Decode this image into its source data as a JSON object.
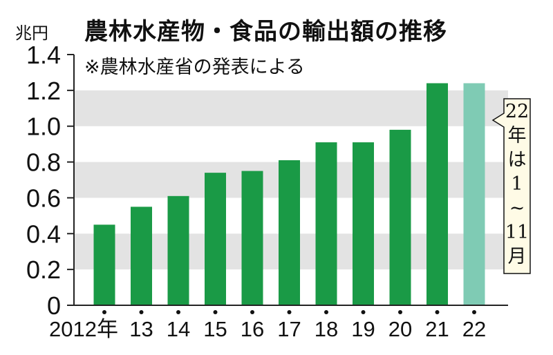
{
  "title": "農林水産物・食品の輸出額の推移",
  "subtitle": "※農林水産省の発表による",
  "colors": {
    "bar": "#1a9a46",
    "bar_partial": "#7fcbb4",
    "band": "#e3e3e3",
    "axis": "#222222"
  },
  "chart_data": {
    "type": "bar",
    "title": "農林水産物・食品の輸出額の推移",
    "ylabel": "兆円",
    "xlabel": "",
    "ylim": [
      0,
      1.4
    ],
    "yticks": [
      "0",
      "0.2",
      "0.4",
      "0.6",
      "0.8",
      "1.0",
      "1.2",
      "1.4"
    ],
    "categories": [
      "2012年",
      "13",
      "14",
      "15",
      "16",
      "17",
      "18",
      "19",
      "20",
      "21",
      "22"
    ],
    "values": [
      0.45,
      0.55,
      0.61,
      0.74,
      0.75,
      0.81,
      0.91,
      0.91,
      0.98,
      1.24,
      1.24
    ],
    "grid": "horizontal bands",
    "annotation": {
      "target": "22",
      "lines": [
        "22",
        "年",
        "は",
        "1",
        "~",
        "11",
        "月"
      ]
    }
  }
}
